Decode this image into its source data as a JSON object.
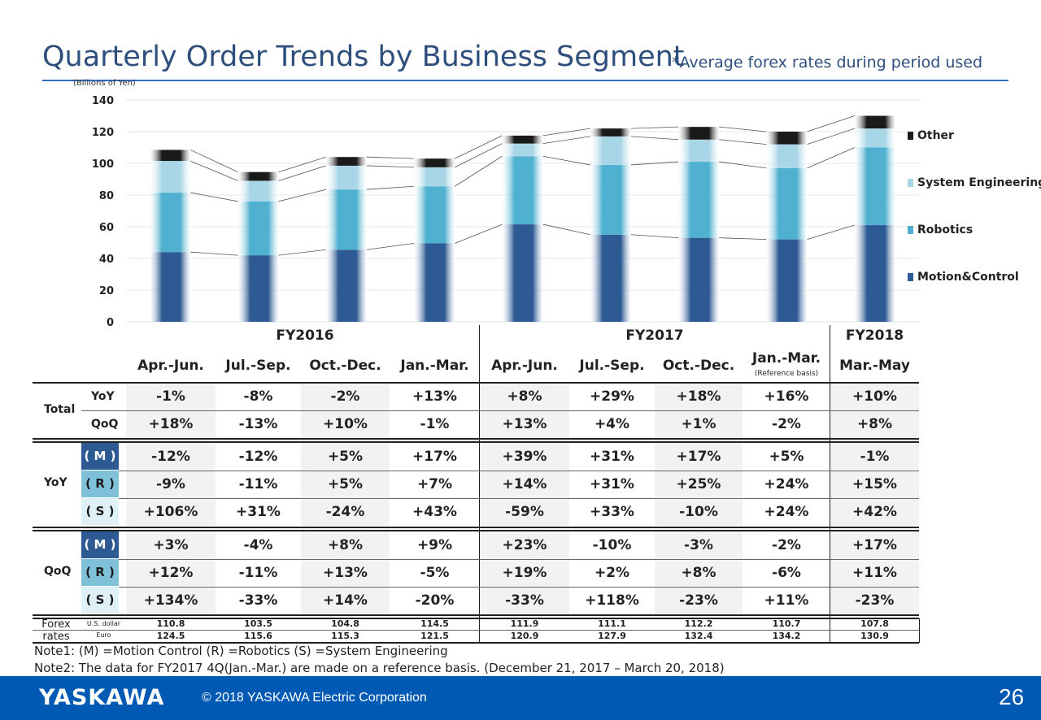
{
  "header": {
    "title": "Quarterly Order Trends by Business Segment",
    "subtitle": "*Average forex rates during period used",
    "unit": "(Billions of Yen)"
  },
  "chart_data": {
    "type": "bar",
    "stacked": true,
    "ylim": [
      0,
      140
    ],
    "yticks": [
      0,
      20,
      40,
      60,
      80,
      100,
      120,
      140
    ],
    "categories": [
      "Apr.-Jun.",
      "Jul.-Sep.",
      "Oct.-Dec.",
      "Jan.-Mar.",
      "Apr.-Jun.",
      "Jul.-Sep.",
      "Oct.-Dec.",
      "Jan.-Mar.",
      "Mar.-May"
    ],
    "series": [
      {
        "name": "Motion&Control",
        "color": "#2e5a94",
        "values": [
          44,
          42,
          45.5,
          49.5,
          61.5,
          55,
          53,
          52,
          61
        ]
      },
      {
        "name": "Robotics",
        "color": "#4fb0cf",
        "values": [
          37.5,
          34,
          38,
          36,
          43,
          44,
          48,
          45,
          49
        ]
      },
      {
        "name": "System Engineering",
        "color": "#a9d6e7",
        "values": [
          20,
          13,
          15,
          12,
          8,
          18,
          14,
          15,
          12
        ]
      },
      {
        "name": "Other",
        "color": "#1a1a1a",
        "values": [
          7,
          5.5,
          5.5,
          5.5,
          5,
          5,
          8,
          8,
          8
        ]
      }
    ],
    "legend_order": [
      "Other",
      "System Engineering",
      "Robotics",
      "Motion&Control"
    ],
    "grid": true
  },
  "table": {
    "fiscal_years": [
      "FY2016",
      "FY2017",
      "FY2018"
    ],
    "quarters": [
      "Apr.-Jun.",
      "Jul.-Sep.",
      "Oct.-Dec.",
      "Jan.-Mar.",
      "Apr.-Jun.",
      "Jul.-Sep.",
      "Oct.-Dec.",
      "Jan.-Mar.",
      "Mar.-May"
    ],
    "reference_note": "(Reference basis)",
    "total_label": "Total",
    "yoy_label": "YoY",
    "qoq_label": "QoQ",
    "total_rows": [
      {
        "label": "YoY",
        "values": [
          "-1%",
          "-8%",
          "-2%",
          "+13%",
          "+8%",
          "+29%",
          "+18%",
          "+16%",
          "+10%"
        ]
      },
      {
        "label": "QoQ",
        "values": [
          "+18%",
          "-13%",
          "+10%",
          "-1%",
          "+13%",
          "+4%",
          "+1%",
          "-2%",
          "+8%"
        ]
      }
    ],
    "yoy_rows": [
      {
        "tag": "( M )",
        "values": [
          "-12%",
          "-12%",
          "+5%",
          "+17%",
          "+39%",
          "+31%",
          "+17%",
          "+5%",
          "-1%"
        ]
      },
      {
        "tag": "( R )",
        "values": [
          "-9%",
          "-11%",
          "+5%",
          "+7%",
          "+14%",
          "+31%",
          "+25%",
          "+24%",
          "+15%"
        ]
      },
      {
        "tag": "( S )",
        "values": [
          "+106%",
          "+31%",
          "-24%",
          "+43%",
          "-59%",
          "+33%",
          "-10%",
          "+24%",
          "+42%"
        ]
      }
    ],
    "qoq_rows": [
      {
        "tag": "( M )",
        "values": [
          "+3%",
          "-4%",
          "+8%",
          "+9%",
          "+23%",
          "-10%",
          "-3%",
          "-2%",
          "+17%"
        ]
      },
      {
        "tag": "( R )",
        "values": [
          "+12%",
          "-11%",
          "+13%",
          "-5%",
          "+19%",
          "+2%",
          "+8%",
          "-6%",
          "+11%"
        ]
      },
      {
        "tag": "( S )",
        "values": [
          "+134%",
          "-33%",
          "+14%",
          "-20%",
          "-33%",
          "+118%",
          "-23%",
          "+11%",
          "-23%"
        ]
      }
    ],
    "forex": {
      "label1": "Forex",
      "label2": "rates",
      "usd_label": "U.S. dollar",
      "euro_label": "Euro",
      "usd": [
        "110.8",
        "103.5",
        "104.8",
        "114.5",
        "111.9",
        "111.1",
        "112.2",
        "110.7",
        "107.8"
      ],
      "euro": [
        "124.5",
        "115.6",
        "115.3",
        "121.5",
        "120.9",
        "127.9",
        "132.4",
        "134.2",
        "130.9"
      ]
    }
  },
  "notes": {
    "note1": "Note1: (M) =Motion Control (R) =Robotics (S) =System Engineering",
    "note2": "Note2: The data for FY2017 4Q(Jan.-Mar.) are made on a reference basis. (December 21, 2017 – March 20, 2018)"
  },
  "footer": {
    "logo": "YASKAWA",
    "copyright": "© 2018 YASKAWA Electric Corporation",
    "page": "26"
  }
}
